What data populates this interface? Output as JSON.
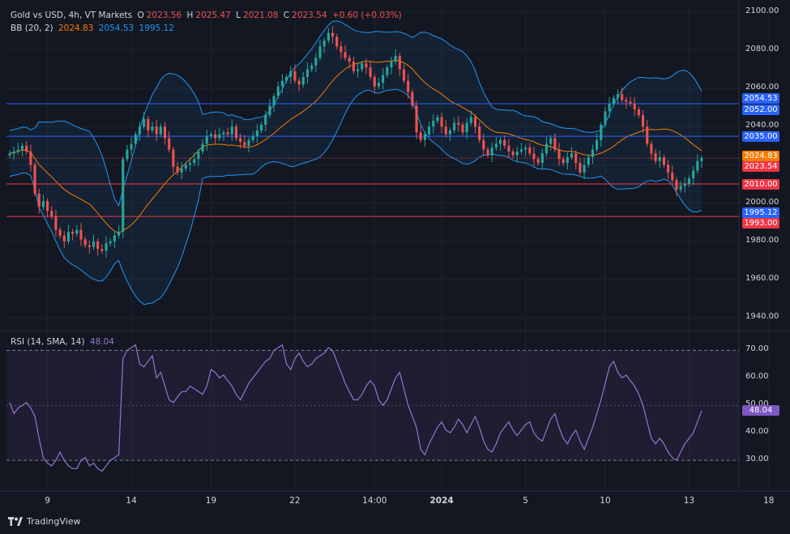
{
  "header": {
    "symbol": "Gold vs USD, 4h, VT Markets",
    "open_label": "O",
    "open": "2023.56",
    "high_label": "H",
    "high": "2025.47",
    "low_label": "L",
    "low": "2021.08",
    "close_label": "C",
    "close": "2023.54",
    "change": "+0.60 (+0.03%)"
  },
  "bb_legend": {
    "label": "BB (20, 2)",
    "basis": "2024.83",
    "upper": "2054.53",
    "lower": "1995.12"
  },
  "rsi_legend": {
    "label": "RSI (14, SMA, 14)",
    "value": "48.04"
  },
  "brand": {
    "name": "TradingView"
  },
  "colors": {
    "bg": "#131722",
    "up": "#26a69a",
    "down": "#ef5350",
    "basis": "#f57c00",
    "bands": "#2962ff",
    "rsi": "#9575cd",
    "support": "#f23645",
    "resistance": "#2962ff"
  },
  "chart_data": [
    {
      "type": "candlestick",
      "title": "Gold vs USD, 4h, VT Markets",
      "y_ticks": [
        1940,
        1960,
        1980,
        2000,
        2020,
        2040,
        2060,
        2080,
        2100
      ],
      "y_tick_labels": [
        "1940.00",
        "1960.00",
        "1980.00",
        "2000.00",
        "2020.00",
        "2040.00",
        "2060.00",
        "2080.00",
        "2100.00"
      ],
      "ylim": [
        1935,
        2102
      ],
      "x_ticks": [
        {
          "label": "9",
          "index": 9
        },
        {
          "label": "14",
          "index": 29
        },
        {
          "label": "19",
          "index": 48
        },
        {
          "label": "22",
          "index": 68
        },
        {
          "label": "14:00",
          "index": 87
        },
        {
          "label": "2024",
          "index": 103
        },
        {
          "label": "5",
          "index": 123
        },
        {
          "label": "10",
          "index": 142
        },
        {
          "label": "13",
          "index": 162
        },
        {
          "label": "18",
          "index": 181
        }
      ],
      "horizontal_levels": [
        {
          "value": 2052.0,
          "label": "2052.00",
          "color": "#2962ff"
        },
        {
          "value": 2035.0,
          "label": "2035.00",
          "color": "#2962ff"
        },
        {
          "value": 2010.0,
          "label": "2010.00",
          "color": "#f23645"
        },
        {
          "value": 1993.0,
          "label": "1993.00",
          "color": "#f23645"
        }
      ],
      "price_labels": [
        {
          "value": 2054.53,
          "label": "2054.53",
          "color": "#2962ff"
        },
        {
          "value": 2024.83,
          "label": "2024.83",
          "color": "#f57c00"
        },
        {
          "value": 2023.54,
          "label": "2023.54",
          "color": "#f23645"
        },
        {
          "value": 1995.12,
          "label": "1995.12",
          "color": "#2962ff"
        }
      ],
      "closes": [
        2026,
        2027,
        2028,
        2030,
        2027,
        2020,
        2005,
        1998,
        2001,
        1996,
        1993,
        1986,
        1983,
        1980,
        1985,
        1984,
        1986,
        1981,
        1978,
        1977,
        1980,
        1976,
        1975,
        1979,
        1980,
        1983,
        1985,
        2023,
        2028,
        2031,
        2036,
        2040,
        2044,
        2038,
        2040,
        2036,
        2040,
        2034,
        2028,
        2019,
        2016,
        2018,
        2020,
        2021,
        2023,
        2027,
        2031,
        2035,
        2036,
        2034,
        2036,
        2037,
        2036,
        2040,
        2034,
        2032,
        2030,
        2033,
        2035,
        2038,
        2041,
        2046,
        2051,
        2056,
        2061,
        2064,
        2066,
        2069,
        2064,
        2062,
        2066,
        2070,
        2072,
        2076,
        2082,
        2085,
        2089,
        2087,
        2082,
        2079,
        2076,
        2074,
        2069,
        2070,
        2073,
        2071,
        2066,
        2061,
        2063,
        2067,
        2071,
        2074,
        2077,
        2070,
        2064,
        2058,
        2051,
        2037,
        2033,
        2036,
        2040,
        2043,
        2045,
        2040,
        2036,
        2038,
        2042,
        2041,
        2037,
        2042,
        2045,
        2040,
        2033,
        2028,
        2025,
        2029,
        2031,
        2033,
        2030,
        2027,
        2025,
        2027,
        2028,
        2029,
        2026,
        2023,
        2021,
        2026,
        2031,
        2034,
        2028,
        2023,
        2021,
        2024,
        2026,
        2021,
        2016,
        2020,
        2024,
        2028,
        2033,
        2041,
        2048,
        2052,
        2055,
        2057,
        2054,
        2053,
        2052,
        2049,
        2046,
        2040,
        2031,
        2026,
        2022,
        2024,
        2020,
        2016,
        2012,
        2007,
        2009,
        2010,
        2013,
        2017,
        2022,
        2023.54
      ],
      "rsi": {
        "ylim": [
          20,
          76
        ],
        "y_ticks": [
          30,
          40,
          50,
          60,
          70
        ],
        "y_tick_labels": [
          "30.00",
          "40.00",
          "50.00",
          "60.00",
          "70.00"
        ],
        "bands": [
          30,
          70
        ],
        "midline": 50,
        "current": 48.04,
        "values": [
          51,
          47,
          49,
          50,
          51,
          49,
          46,
          38,
          31,
          29,
          28,
          30,
          33,
          30,
          28,
          27,
          27,
          30,
          31,
          28,
          29,
          27,
          26,
          28,
          30,
          31,
          32,
          67,
          70,
          71,
          72,
          65,
          64,
          66,
          68,
          60,
          62,
          57,
          52,
          51,
          53,
          55,
          55,
          57,
          56,
          55,
          54,
          57,
          63,
          62,
          60,
          61,
          59,
          57,
          54,
          52,
          55,
          58,
          60,
          62,
          64,
          66,
          67,
          70,
          71,
          72,
          65,
          63,
          67,
          69,
          66,
          64,
          65,
          67,
          68,
          69,
          71,
          70,
          66,
          62,
          58,
          55,
          52,
          52,
          54,
          57,
          59,
          57,
          52,
          50,
          52,
          56,
          60,
          62,
          56,
          50,
          46,
          42,
          34,
          32,
          36,
          39,
          42,
          44,
          41,
          40,
          42,
          45,
          43,
          40,
          43,
          46,
          42,
          37,
          34,
          33,
          36,
          40,
          42,
          44,
          41,
          39,
          41,
          43,
          44,
          40,
          38,
          37,
          41,
          45,
          47,
          42,
          38,
          36,
          39,
          41,
          37,
          34,
          38,
          42,
          47,
          52,
          58,
          64,
          66,
          62,
          60,
          61,
          59,
          57,
          54,
          50,
          44,
          38,
          36,
          38,
          36,
          33,
          31,
          30,
          33,
          36,
          38,
          40,
          44,
          48.04
        ]
      }
    }
  ]
}
